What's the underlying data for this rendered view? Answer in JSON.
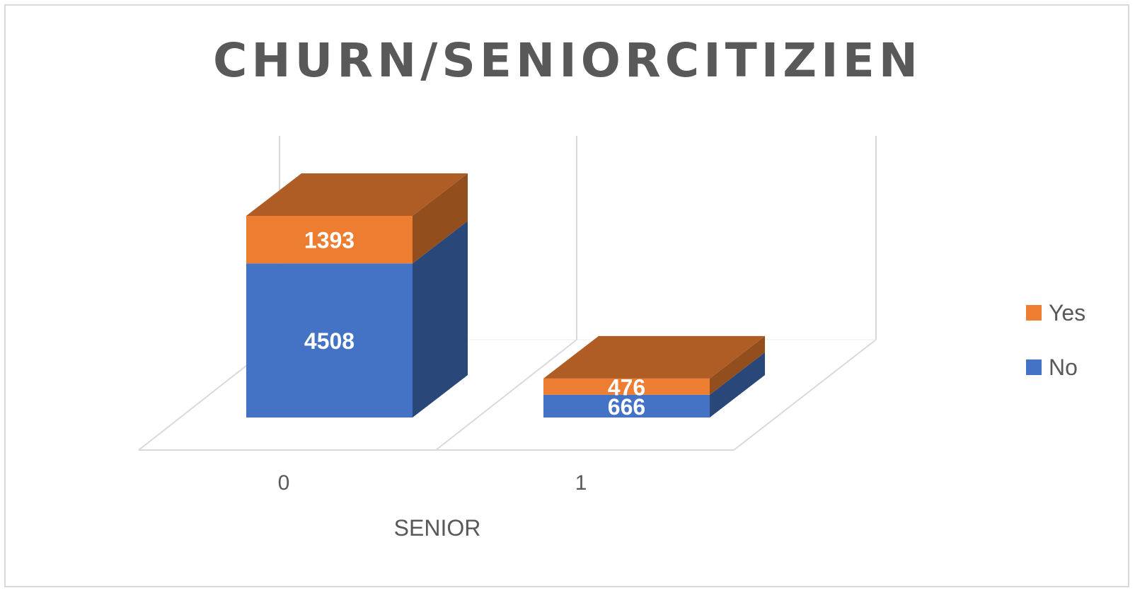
{
  "chart_data": {
    "type": "bar",
    "stacked": true,
    "three_d": true,
    "title": "CHURN/SENIORCITIZIEN",
    "xlabel": "SENIOR",
    "ylabel": "",
    "categories": [
      "0",
      "1"
    ],
    "series": [
      {
        "name": "No",
        "values": [
          4508,
          666
        ],
        "color": "#4472c4"
      },
      {
        "name": "Yes",
        "values": [
          1393,
          476
        ],
        "color": "#ed7d31"
      }
    ],
    "legend_position": "right",
    "legend_order": [
      "Yes",
      "No"
    ],
    "grid": false
  }
}
